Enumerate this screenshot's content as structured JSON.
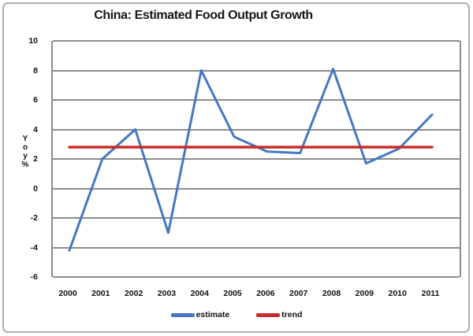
{
  "frame": {
    "background_color": "#ffffff",
    "border_color": "#aeaeae"
  },
  "chart_data": {
    "type": "line",
    "title": "China: Estimated Food Output Growth",
    "categories": [
      "2000",
      "2001",
      "2002",
      "2003",
      "2004",
      "2005",
      "2006",
      "2007",
      "2008",
      "2009",
      "2010",
      "2011"
    ],
    "series": [
      {
        "name": "estimate",
        "color": "#4677C2",
        "values": [
          -4.2,
          2.0,
          4.0,
          -3.0,
          8.0,
          3.5,
          2.5,
          2.4,
          8.1,
          1.7,
          2.7,
          5.0
        ]
      },
      {
        "name": "trend",
        "color": "#C52F2A",
        "values": [
          2.8,
          2.8,
          2.8,
          2.8,
          2.8,
          2.8,
          2.8,
          2.8,
          2.8,
          2.8,
          2.8,
          2.8
        ]
      }
    ],
    "xlabel": "",
    "ylabel": "Y o y %",
    "ylim": [
      -6,
      10
    ],
    "yticks": [
      10,
      8,
      6,
      4,
      2,
      0,
      -2,
      -4,
      -6
    ],
    "ytick_interval": 2,
    "grid": "horizontal",
    "gridline_color": "#8c8c8c",
    "legend_position": "bottom"
  }
}
